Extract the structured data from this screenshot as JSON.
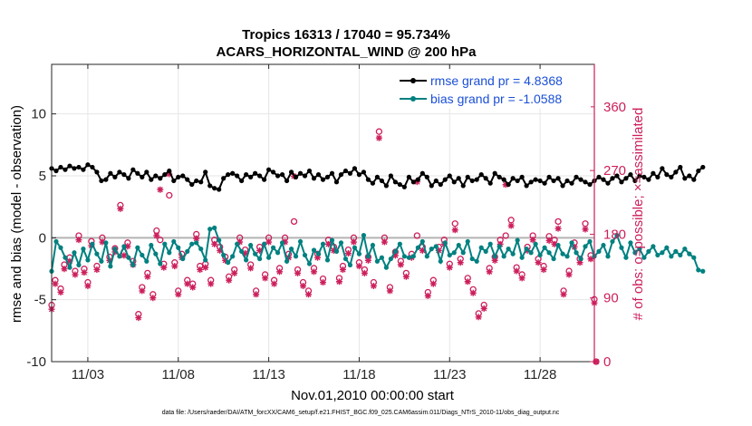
{
  "chart_data": {
    "type": "line",
    "title_line1": "Tropics 16313 / 17040 = 95.734%",
    "title_line2": "ACARS_HORIZONTAL_WIND @ 200 hPa",
    "xlabel": "Nov.01,2010 00:00:00 start",
    "ylabel": "rmse and bias (model - observation)",
    "ylabel_right": "# of obs: o=possible; ×=assimilated",
    "footnote": "data file: /Users/raeder/DAI/ATM_forcXX/CAM6_setup/f.e21.FHIST_BGC.f09_025.CAM6assim.011/Diags_NTrS_2010-11/obs_diag_output.nc",
    "xlim": [
      1,
      31
    ],
    "ylim": [
      -10,
      14
    ],
    "ylim_right": [
      0,
      420
    ],
    "x_ticks": [
      {
        "day": 3,
        "label": "11/03"
      },
      {
        "day": 8,
        "label": "11/08"
      },
      {
        "day": 13,
        "label": "11/13"
      },
      {
        "day": 18,
        "label": "11/18"
      },
      {
        "day": 23,
        "label": "11/23"
      },
      {
        "day": 28,
        "label": "11/28"
      }
    ],
    "y_ticks": [
      {
        "value": -10,
        "label": "-10"
      },
      {
        "value": -5,
        "label": "-5"
      },
      {
        "value": 0,
        "label": "0"
      },
      {
        "value": 5,
        "label": "5"
      },
      {
        "value": 10,
        "label": "10"
      }
    ],
    "y_ticks_right": [
      {
        "value": 0,
        "label": "0"
      },
      {
        "value": 90,
        "label": "90"
      },
      {
        "value": 180,
        "label": "180"
      },
      {
        "value": 270,
        "label": "270"
      },
      {
        "value": 360,
        "label": "360"
      }
    ],
    "x_start": 1.0,
    "x_step": 0.25,
    "series": [
      {
        "name": "rmse",
        "legend_label": "rmse grand pr = 4.8368",
        "color": "#000000",
        "values": [
          5.6,
          5.4,
          5.7,
          5.5,
          5.8,
          5.6,
          5.7,
          5.5,
          5.9,
          5.7,
          5.3,
          4.6,
          4.7,
          5.2,
          4.9,
          5.3,
          5.1,
          4.8,
          5.5,
          5.2,
          4.9,
          5.3,
          4.7,
          5.0,
          4.8,
          5.1,
          5.4,
          4.6,
          4.9,
          5.0,
          4.7,
          4.3,
          4.6,
          4.5,
          5.3,
          4.2,
          4.0,
          3.9,
          4.8,
          5.1,
          5.2,
          5.0,
          4.6,
          5.1,
          4.9,
          5.2,
          5.0,
          4.7,
          5.5,
          5.3,
          5.0,
          5.1,
          4.6,
          5.3,
          4.9,
          5.2,
          5.0,
          5.4,
          4.8,
          5.1,
          4.7,
          4.9,
          5.2,
          4.5,
          5.1,
          5.4,
          5.2,
          5.6,
          5.1,
          5.3,
          4.7,
          4.4,
          4.9,
          4.6,
          4.2,
          5.0,
          4.5,
          4.3,
          4.1,
          4.9,
          4.5,
          4.7,
          5.2,
          4.9,
          4.2,
          4.6,
          4.3,
          4.7,
          5.0,
          4.5,
          4.8,
          4.2,
          4.9,
          4.6,
          4.7,
          5.1,
          4.8,
          4.4,
          5.2,
          4.9,
          4.7,
          4.3,
          4.8,
          4.6,
          4.9,
          4.2,
          4.5,
          4.7,
          4.6,
          4.4,
          4.9,
          4.6,
          4.8,
          4.2,
          4.6,
          4.4,
          4.9,
          4.7,
          4.5,
          4.3,
          4.6,
          4.9,
          4.7,
          4.4,
          4.8,
          5.0,
          4.5,
          4.8,
          5.1,
          4.6,
          5.0,
          4.9,
          4.7,
          5.2,
          4.9,
          5.6,
          5.1,
          4.9,
          5.3,
          5.7,
          4.8,
          5.0,
          4.7,
          5.4,
          5.7
        ]
      },
      {
        "name": "bias",
        "legend_label": "bias grand pr = -1.0588",
        "color": "#008080",
        "values": [
          -2.7,
          -0.3,
          -0.8,
          -1.6,
          -2.4,
          -1.2,
          -2.2,
          -0.9,
          -1.8,
          -0.5,
          -1.3,
          -1.9,
          -0.4,
          -2.3,
          -0.9,
          -1.5,
          -0.7,
          -1.6,
          -2.2,
          -0.8,
          -1.4,
          -1.9,
          -0.6,
          -1.3,
          -2.1,
          -0.5,
          -1.2,
          -0.3,
          -0.8,
          -1.7,
          -1.1,
          -0.5,
          -0.4,
          -0.9,
          -1.8,
          0.7,
          0.8,
          -0.2,
          -1.4,
          -2.0,
          -1.5,
          -0.5,
          -1.1,
          -1.8,
          -0.6,
          -1.3,
          -1.7,
          -0.5,
          -1.6,
          -0.8,
          -1.2,
          -0.4,
          -1.9,
          -0.9,
          -1.5,
          -0.3,
          -1.4,
          -2.1,
          -1.0,
          -1.3,
          -0.5,
          -1.8,
          -0.2,
          -1.1,
          -0.4,
          -1.7,
          -2.2,
          -0.8,
          -1.3,
          0.2,
          -1.5,
          -0.6,
          -1.9,
          -1.6,
          -2.4,
          -1.7,
          -1.1,
          -0.5,
          -1.5,
          -1.6,
          -1.5,
          -0.8,
          -0.3,
          -1.5,
          -0.9,
          -0.7,
          -1.9,
          -0.4,
          -1.4,
          -1.2,
          -0.6,
          -1.2,
          -0.3,
          -1.7,
          -1.9,
          -0.8,
          -1.1,
          -0.5,
          -1.5,
          -0.7,
          -1.5,
          -0.9,
          -1.3,
          -0.2,
          -1.6,
          -0.9,
          -1.2,
          -0.5,
          -1.4,
          -0.8,
          -1.2,
          -1.7,
          -0.6,
          -1.3,
          -1.5,
          -0.4,
          -1.2,
          -1.7,
          -0.7,
          -0.3,
          -1.5,
          -1.1,
          -0.6,
          -1.5,
          -0.3,
          0.2,
          -0.8,
          -1.6,
          -0.4,
          -1.2,
          -0.9,
          -1.6,
          -1.1,
          -0.7,
          -1.4,
          -1.2,
          -0.8,
          -1.5,
          -1.1,
          -1.4,
          -0.9,
          -1.3,
          -1.6,
          -2.6,
          -2.7
        ]
      }
    ],
    "obs_possible_points": [
      [
        1.0,
        80
      ],
      [
        1.2,
        115
      ],
      [
        1.5,
        103
      ],
      [
        1.7,
        137
      ],
      [
        2.0,
        147
      ],
      [
        2.3,
        128
      ],
      [
        2.5,
        178
      ],
      [
        2.8,
        131
      ],
      [
        3.0,
        112
      ],
      [
        3.2,
        170
      ],
      [
        3.5,
        135
      ],
      [
        3.8,
        175
      ],
      [
        4.2,
        148
      ],
      [
        4.5,
        160
      ],
      [
        4.8,
        221
      ],
      [
        5.0,
        155
      ],
      [
        5.2,
        168
      ],
      [
        5.5,
        142
      ],
      [
        5.8,
        67
      ],
      [
        6.0,
        105
      ],
      [
        6.3,
        125
      ],
      [
        6.6,
        95
      ],
      [
        6.8,
        185
      ],
      [
        7.0,
        172
      ],
      [
        7.2,
        138
      ],
      [
        7.5,
        235
      ],
      [
        7.8,
        140
      ],
      [
        8.0,
        100
      ],
      [
        8.2,
        152
      ],
      [
        8.5,
        115
      ],
      [
        8.8,
        110
      ],
      [
        9.0,
        180
      ],
      [
        9.2,
        135
      ],
      [
        9.5,
        138
      ],
      [
        9.8,
        115
      ],
      [
        10.0,
        172
      ],
      [
        10.3,
        162
      ],
      [
        10.6,
        148
      ],
      [
        10.8,
        120
      ],
      [
        11.1,
        130
      ],
      [
        11.4,
        175
      ],
      [
        11.7,
        158
      ],
      [
        12.0,
        137
      ],
      [
        12.3,
        100
      ],
      [
        12.5,
        162
      ],
      [
        12.8,
        123
      ],
      [
        13.0,
        175
      ],
      [
        13.3,
        115
      ],
      [
        13.6,
        132
      ],
      [
        13.9,
        175
      ],
      [
        14.1,
        152
      ],
      [
        14.4,
        198
      ],
      [
        14.6,
        130
      ],
      [
        14.9,
        112
      ],
      [
        15.2,
        100
      ],
      [
        15.5,
        132
      ],
      [
        15.7,
        152
      ],
      [
        16.0,
        117
      ],
      [
        16.3,
        172
      ],
      [
        16.6,
        162
      ],
      [
        16.9,
        118
      ],
      [
        17.1,
        135
      ],
      [
        17.4,
        158
      ],
      [
        17.7,
        175
      ],
      [
        18.0,
        140
      ],
      [
        18.3,
        130
      ],
      [
        18.5,
        148
      ],
      [
        18.8,
        112
      ],
      [
        19.1,
        325
      ],
      [
        19.4,
        175
      ],
      [
        19.7,
        105
      ],
      [
        20.0,
        155
      ],
      [
        20.3,
        142
      ],
      [
        20.6,
        125
      ],
      [
        20.9,
        152
      ],
      [
        21.2,
        178
      ],
      [
        21.5,
        162
      ],
      [
        21.8,
        98
      ],
      [
        22.1,
        115
      ],
      [
        22.4,
        162
      ],
      [
        22.7,
        172
      ],
      [
        23.0,
        138
      ],
      [
        23.3,
        195
      ],
      [
        23.6,
        145
      ],
      [
        24.0,
        118
      ],
      [
        24.3,
        102
      ],
      [
        24.6,
        68
      ],
      [
        24.9,
        80
      ],
      [
        25.2,
        132
      ],
      [
        25.5,
        148
      ],
      [
        25.8,
        172
      ],
      [
        26.1,
        178
      ],
      [
        26.4,
        200
      ],
      [
        26.7,
        133
      ],
      [
        27.0,
        123
      ],
      [
        27.3,
        162
      ],
      [
        27.6,
        178
      ],
      [
        27.9,
        145
      ],
      [
        28.2,
        135
      ],
      [
        28.5,
        177
      ],
      [
        28.8,
        172
      ],
      [
        29.0,
        198
      ],
      [
        29.3,
        100
      ],
      [
        29.6,
        128
      ],
      [
        29.9,
        168
      ],
      [
        30.2,
        145
      ],
      [
        30.5,
        195
      ],
      [
        30.8,
        150
      ],
      [
        31.0,
        88
      ],
      [
        31.1,
        0
      ]
    ],
    "obs_assimilated_points": [
      [
        1.0,
        74
      ],
      [
        1.2,
        110
      ],
      [
        1.5,
        98
      ],
      [
        1.7,
        131
      ],
      [
        2.0,
        142
      ],
      [
        2.3,
        123
      ],
      [
        2.5,
        172
      ],
      [
        2.8,
        126
      ],
      [
        3.0,
        107
      ],
      [
        3.2,
        164
      ],
      [
        3.5,
        130
      ],
      [
        3.8,
        169
      ],
      [
        4.2,
        143
      ],
      [
        4.5,
        155
      ],
      [
        4.8,
        216
      ],
      [
        5.0,
        150
      ],
      [
        5.2,
        163
      ],
      [
        5.5,
        137
      ],
      [
        5.8,
        62
      ],
      [
        6.0,
        100
      ],
      [
        6.3,
        120
      ],
      [
        6.6,
        90
      ],
      [
        6.8,
        178
      ],
      [
        7.0,
        243
      ],
      [
        7.2,
        133
      ],
      [
        7.5,
        265
      ],
      [
        7.8,
        135
      ],
      [
        8.0,
        95
      ],
      [
        8.2,
        147
      ],
      [
        8.5,
        110
      ],
      [
        8.8,
        105
      ],
      [
        9.0,
        174
      ],
      [
        9.2,
        130
      ],
      [
        9.5,
        133
      ],
      [
        9.8,
        110
      ],
      [
        10.0,
        166
      ],
      [
        10.3,
        157
      ],
      [
        10.6,
        143
      ],
      [
        10.8,
        115
      ],
      [
        11.1,
        125
      ],
      [
        11.4,
        169
      ],
      [
        11.7,
        153
      ],
      [
        12.0,
        132
      ],
      [
        12.3,
        95
      ],
      [
        12.5,
        157
      ],
      [
        12.8,
        118
      ],
      [
        13.0,
        169
      ],
      [
        13.3,
        110
      ],
      [
        13.6,
        127
      ],
      [
        13.9,
        169
      ],
      [
        14.1,
        147
      ],
      [
        14.4,
        262
      ],
      [
        14.6,
        125
      ],
      [
        14.9,
        107
      ],
      [
        15.2,
        95
      ],
      [
        15.5,
        127
      ],
      [
        15.7,
        147
      ],
      [
        16.0,
        112
      ],
      [
        16.3,
        166
      ],
      [
        16.6,
        157
      ],
      [
        16.9,
        113
      ],
      [
        17.1,
        130
      ],
      [
        17.4,
        153
      ],
      [
        17.7,
        169
      ],
      [
        18.0,
        135
      ],
      [
        18.3,
        125
      ],
      [
        18.5,
        143
      ],
      [
        18.8,
        107
      ],
      [
        19.1,
        316
      ],
      [
        19.4,
        169
      ],
      [
        19.7,
        100
      ],
      [
        20.0,
        150
      ],
      [
        20.3,
        137
      ],
      [
        20.6,
        120
      ],
      [
        20.9,
        147
      ],
      [
        21.2,
        254
      ],
      [
        21.5,
        157
      ],
      [
        21.8,
        93
      ],
      [
        22.1,
        110
      ],
      [
        22.4,
        157
      ],
      [
        22.7,
        166
      ],
      [
        23.0,
        133
      ],
      [
        23.3,
        186
      ],
      [
        23.6,
        140
      ],
      [
        24.0,
        113
      ],
      [
        24.3,
        97
      ],
      [
        24.6,
        63
      ],
      [
        24.9,
        75
      ],
      [
        25.2,
        127
      ],
      [
        25.5,
        143
      ],
      [
        25.8,
        166
      ],
      [
        26.1,
        250
      ],
      [
        26.4,
        192
      ],
      [
        26.7,
        128
      ],
      [
        27.0,
        118
      ],
      [
        27.3,
        157
      ],
      [
        27.6,
        172
      ],
      [
        27.9,
        140
      ],
      [
        28.2,
        130
      ],
      [
        28.5,
        171
      ],
      [
        28.8,
        166
      ],
      [
        29.0,
        188
      ],
      [
        29.3,
        95
      ],
      [
        29.6,
        123
      ],
      [
        29.9,
        162
      ],
      [
        30.2,
        140
      ],
      [
        30.5,
        187
      ],
      [
        30.8,
        145
      ],
      [
        31.0,
        83
      ],
      [
        31.1,
        0
      ]
    ],
    "colors": {
      "rmse": "#000000",
      "bias": "#008080",
      "obs": "#cc1f5c",
      "legend_text": "#1a4fd6",
      "zero_line": "#b3b3b3",
      "grid": "#e6e6e6"
    }
  }
}
